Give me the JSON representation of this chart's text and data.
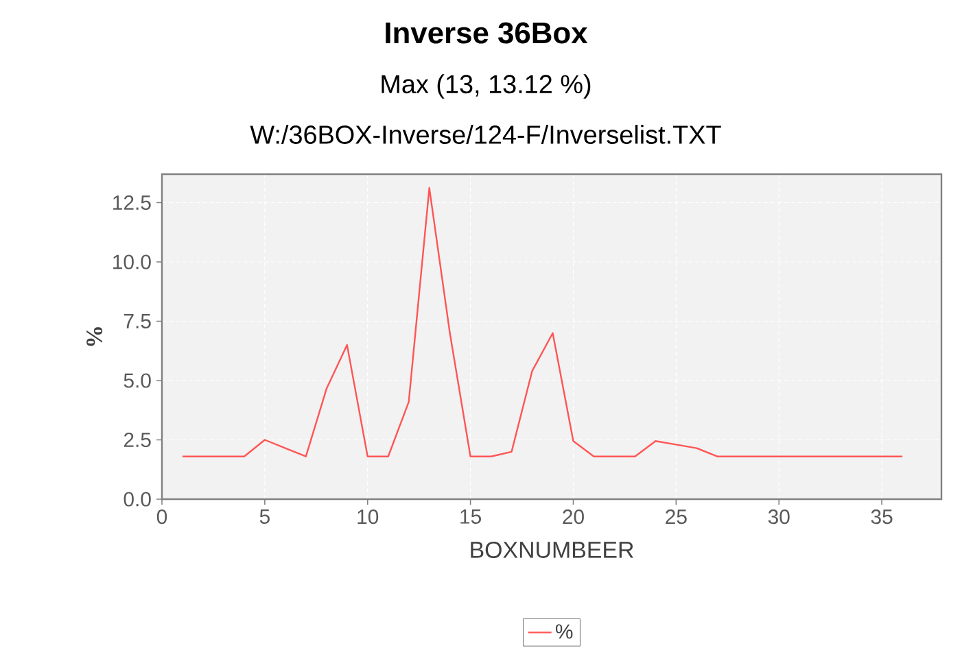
{
  "chart_data": {
    "type": "line",
    "title": "Inverse 36Box",
    "subtitle": "Max (13, 13.12 %)",
    "annotations": [
      "W:/36BOX-Inverse/124-F/Inverselist.TXT"
    ],
    "xlabel": "BOXNUMBEER",
    "ylabel": "%",
    "x": [
      1,
      2,
      3,
      4,
      5,
      6,
      7,
      8,
      9,
      10,
      11,
      12,
      13,
      14,
      15,
      16,
      17,
      18,
      19,
      20,
      21,
      22,
      23,
      24,
      25,
      26,
      27,
      28,
      29,
      30,
      31,
      32,
      33,
      34,
      35,
      36
    ],
    "series": [
      {
        "name": "%",
        "color": "#ff5555",
        "values": [
          1.8,
          1.8,
          1.8,
          1.8,
          2.5,
          2.15,
          1.8,
          4.65,
          6.5,
          1.8,
          1.8,
          4.1,
          13.12,
          7.0,
          1.8,
          1.8,
          2.0,
          5.4,
          7.0,
          2.45,
          1.8,
          1.8,
          1.8,
          2.45,
          2.3,
          2.15,
          1.8,
          1.8,
          1.8,
          1.8,
          1.8,
          1.8,
          1.8,
          1.8,
          1.8,
          1.8
        ]
      }
    ],
    "xlim": [
      0,
      37.9
    ],
    "ylim": [
      0,
      13.7
    ],
    "xticks": [
      0,
      5,
      10,
      15,
      20,
      25,
      30,
      35
    ],
    "yticks": [
      {
        "value": 0,
        "label": "0.0"
      },
      {
        "value": 2.5,
        "label": "2.5"
      },
      {
        "value": 5,
        "label": "5.0"
      },
      {
        "value": 7.5,
        "label": "7.5"
      },
      {
        "value": 10,
        "label": "10.0"
      },
      {
        "value": 12.5,
        "label": "12.5"
      }
    ],
    "grid": true,
    "legend": "bottom",
    "marker": "none",
    "line_style": "solid"
  }
}
